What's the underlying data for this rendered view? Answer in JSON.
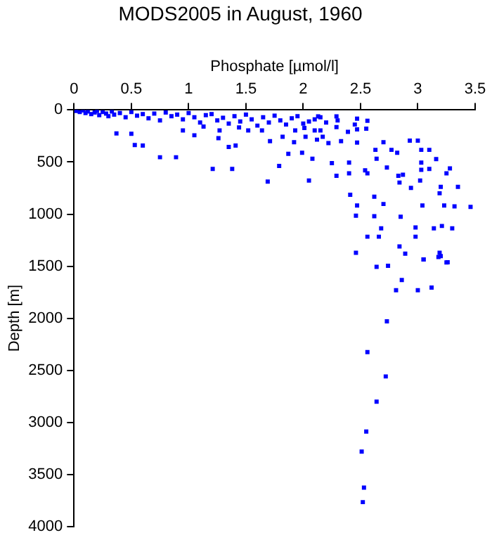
{
  "chart_data": {
    "type": "scatter",
    "title": "MODS2005 in August, 1960",
    "xlabel": "Phosphate [µmol/l]",
    "ylabel": "Depth [m]",
    "xlim": [
      0,
      3.5
    ],
    "xticks": [
      0,
      0.5,
      1,
      1.5,
      2,
      2.5,
      3,
      3.5
    ],
    "ylim": [
      4000,
      0
    ],
    "yticks": [
      0,
      500,
      1000,
      1500,
      2000,
      2500,
      3000,
      3500,
      4000
    ],
    "grid": false,
    "legend": false,
    "marker": "square",
    "series": [
      {
        "color": "#0000ff",
        "x": [
          2.64,
          2.74,
          3.05,
          3.18,
          3.26,
          2.86,
          2.81,
          3.0,
          3.12,
          2.73,
          2.56,
          2.72,
          2.64,
          2.55,
          2.51,
          2.53,
          2.52,
          0.37,
          0.53,
          0.6,
          0.75,
          0.89,
          1.21,
          1.38,
          1.69,
          1.79,
          2.05,
          1.35,
          1.41,
          1.05,
          1.26,
          0.95,
          0.5,
          1.71,
          1.87,
          1.99,
          2.08,
          2.25,
          2.29,
          2.4,
          2.4,
          2.47,
          2.41,
          2.47,
          2.46,
          2.56,
          2.66,
          2.62,
          2.62,
          2.7,
          2.68,
          2.54,
          2.56,
          2.63,
          2.7,
          2.77,
          2.64,
          2.73,
          2.82,
          2.93,
          3.0,
          2.83,
          2.84,
          2.87,
          2.94,
          3.03,
          3.1,
          3.03,
          3.03,
          3.1,
          3.02,
          3.16,
          3.25,
          3.28,
          3.2,
          3.35,
          3.19,
          3.04,
          3.23,
          3.32,
          3.46,
          2.85,
          2.98,
          3.14,
          3.21,
          3.3,
          2.98,
          2.84,
          2.89,
          3.05,
          3.19,
          3.2,
          3.25,
          2.46,
          1.82,
          1.92,
          2.02,
          2.12,
          2.17,
          2.22,
          2.33,
          2.39,
          2.47,
          2.29,
          2.15,
          2.01,
          1.64,
          1.52,
          1.44,
          1.27,
          1.13,
          2.13,
          2.29,
          2.47,
          2.56,
          2.1,
          1.93,
          0.02,
          0.05,
          0.08,
          0.1,
          0.12,
          0.15,
          0.18,
          0.2,
          0.22,
          0.25,
          0.28,
          0.3,
          0.33,
          0.35,
          0.4,
          0.45,
          0.5,
          0.55,
          0.6,
          0.65,
          0.7,
          0.75,
          0.8,
          0.85,
          0.9,
          0.95,
          1.0,
          1.05,
          1.1,
          1.15,
          1.2,
          1.25,
          1.3,
          1.35,
          1.4,
          1.45,
          1.5,
          1.55,
          1.6,
          1.65,
          1.7,
          1.75,
          1.8,
          1.85,
          1.9,
          1.95,
          2.0,
          2.05,
          2.1,
          2.15,
          2.2,
          2.3,
          2.45,
          2.55
        ],
        "values": [
          1506,
          1496,
          1436,
          1412,
          1463,
          1633,
          1731,
          1731,
          1706,
          2029,
          2325,
          2559,
          2801,
          3088,
          3280,
          3626,
          3766,
          225,
          337,
          342,
          454,
          454,
          566,
          566,
          688,
          538,
          678,
          355,
          342,
          243,
          271,
          196,
          229,
          299,
          421,
          411,
          468,
          510,
          632,
          608,
          505,
          313,
          814,
          917,
          1015,
          1217,
          1217,
          1020,
          833,
          903,
          1137,
          580,
          608,
          383,
          309,
          383,
          468,
          552,
          411,
          295,
          295,
          632,
          697,
          622,
          748,
          383,
          383,
          505,
          575,
          566,
          678,
          472,
          608,
          561,
          739,
          739,
          800,
          917,
          917,
          926,
          931,
          1025,
          1128,
          1137,
          1114,
          1137,
          1217,
          1310,
          1380,
          1436,
          1371,
          1403,
          1464,
          1371,
          257,
          309,
          257,
          285,
          257,
          318,
          299,
          210,
          187,
          164,
          196,
          173,
          196,
          196,
          168,
          196,
          159,
          61,
          61,
          84,
          103,
          196,
          196,
          10,
          20,
          5,
          30,
          15,
          40,
          25,
          10,
          50,
          20,
          35,
          60,
          15,
          45,
          30,
          70,
          20,
          55,
          40,
          80,
          35,
          100,
          25,
          60,
          45,
          90,
          30,
          70,
          120,
          50,
          40,
          100,
          75,
          130,
          60,
          110,
          45,
          90,
          150,
          70,
          120,
          55,
          100,
          140,
          80,
          60,
          130,
          110,
          90,
          70,
          120,
          100,
          140,
          180
        ]
      }
    ]
  }
}
